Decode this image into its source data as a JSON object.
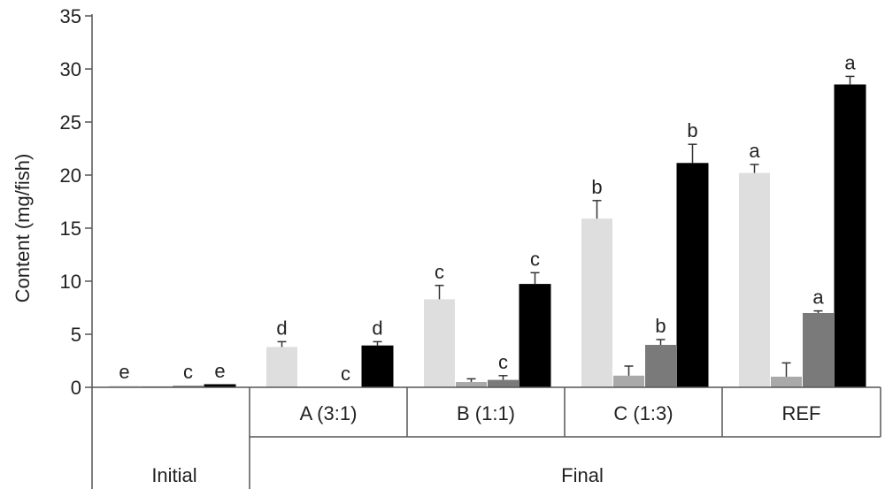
{
  "chart_data": {
    "type": "bar",
    "ylabel": "Content (mg/fish)",
    "ylim": [
      0,
      35
    ],
    "yticks": [
      0,
      5,
      10,
      15,
      20,
      25,
      30,
      35
    ],
    "grid": false,
    "legend": "none",
    "series_colors": [
      "#dedede",
      "#a9a9a9",
      "#7a7a7a",
      "#000000"
    ],
    "outer_groups": [
      "Initial",
      "Final"
    ],
    "categories": [
      "Initial",
      "A (3:1)",
      "B (1:1)",
      "C (1:3)",
      "REF"
    ],
    "bars": [
      [
        {
          "value": 0.15,
          "error": 0,
          "label": "e"
        },
        {
          "value": 0.1,
          "error": 0,
          "label": ""
        },
        {
          "value": 0.15,
          "error": 0,
          "label": "c"
        },
        {
          "value": 0.25,
          "error": 0,
          "label": "e"
        }
      ],
      [
        {
          "value": 3.8,
          "error": 0.5,
          "label": "d"
        },
        {
          "value": 0.0,
          "error": 0,
          "label": ""
        },
        {
          "value": 0.0,
          "error": 0,
          "label": "c"
        },
        {
          "value": 3.9,
          "error": 0.4,
          "label": "d"
        }
      ],
      [
        {
          "value": 8.3,
          "error": 1.3,
          "label": "c"
        },
        {
          "value": 0.5,
          "error": 0.3,
          "label": ""
        },
        {
          "value": 0.7,
          "error": 0.4,
          "label": "c"
        },
        {
          "value": 9.7,
          "error": 1.1,
          "label": "c"
        }
      ],
      [
        {
          "value": 15.9,
          "error": 1.7,
          "label": "b"
        },
        {
          "value": 1.1,
          "error": 0.9,
          "label": ""
        },
        {
          "value": 4.0,
          "error": 0.5,
          "label": "b"
        },
        {
          "value": 21.1,
          "error": 1.8,
          "label": "b"
        }
      ],
      [
        {
          "value": 20.2,
          "error": 0.8,
          "label": "a"
        },
        {
          "value": 1.0,
          "error": 1.3,
          "label": ""
        },
        {
          "value": 7.0,
          "error": 0.2,
          "label": "a"
        },
        {
          "value": 28.5,
          "error": 0.8,
          "label": "a"
        }
      ]
    ]
  }
}
